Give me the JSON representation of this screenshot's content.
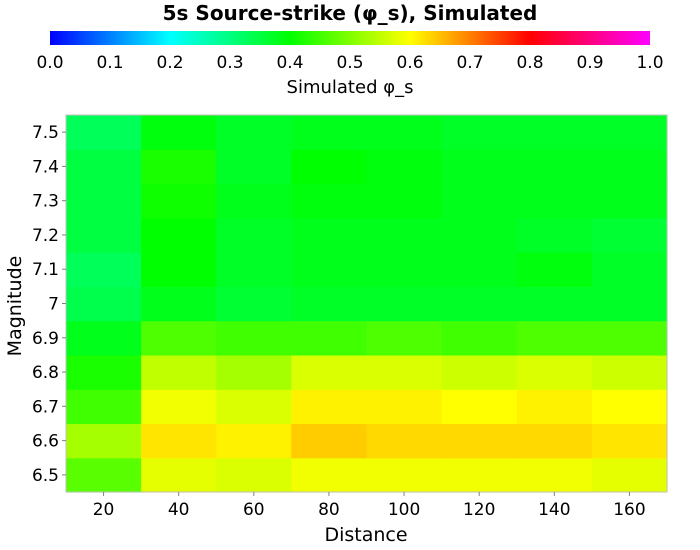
{
  "chart_data": {
    "type": "heatmap",
    "title": "5s Source-strike (φ_s), Simulated",
    "xlabel": "Distance",
    "ylabel": "Magnitude",
    "colorbar": {
      "label": "Simulated φ_s",
      "range": [
        0,
        1
      ],
      "ticks": [
        "0.0",
        "0.1",
        "0.2",
        "0.3",
        "0.4",
        "0.5",
        "0.6",
        "0.7",
        "0.8",
        "0.9",
        "1.0"
      ],
      "colors": [
        "#0000ff",
        "#00ffff",
        "#00ff00",
        "#ffff00",
        "#ff0000",
        "#ff00ff"
      ]
    },
    "x": [
      20,
      40,
      60,
      80,
      100,
      120,
      140,
      160
    ],
    "x_ticks": [
      "20",
      "40",
      "60",
      "80",
      "100",
      "120",
      "140",
      "160"
    ],
    "xlim": [
      10,
      170
    ],
    "y": [
      6.5,
      6.6,
      6.7,
      6.8,
      6.9,
      7.0,
      7.1,
      7.2,
      7.3,
      7.4,
      7.5
    ],
    "y_ticks": [
      "6.5",
      "6.6",
      "6.7",
      "6.8",
      "6.9",
      "7",
      "7.1",
      "7.2",
      "7.3",
      "7.4",
      "7.5"
    ],
    "ylim": [
      6.45,
      7.55
    ],
    "values": [
      [
        0.47,
        0.58,
        0.57,
        0.59,
        0.59,
        0.59,
        0.59,
        0.58
      ],
      [
        0.53,
        0.62,
        0.61,
        0.64,
        0.63,
        0.63,
        0.63,
        0.62
      ],
      [
        0.45,
        0.59,
        0.57,
        0.61,
        0.61,
        0.6,
        0.61,
        0.6
      ],
      [
        0.42,
        0.55,
        0.53,
        0.57,
        0.57,
        0.56,
        0.57,
        0.56
      ],
      [
        0.38,
        0.46,
        0.45,
        0.45,
        0.46,
        0.45,
        0.46,
        0.46
      ],
      [
        0.34,
        0.38,
        0.36,
        0.37,
        0.37,
        0.37,
        0.37,
        0.37
      ],
      [
        0.33,
        0.4,
        0.37,
        0.38,
        0.38,
        0.38,
        0.39,
        0.37
      ],
      [
        0.35,
        0.4,
        0.37,
        0.38,
        0.38,
        0.38,
        0.37,
        0.36
      ],
      [
        0.35,
        0.41,
        0.38,
        0.39,
        0.39,
        0.38,
        0.38,
        0.38
      ],
      [
        0.35,
        0.42,
        0.37,
        0.4,
        0.39,
        0.38,
        0.38,
        0.38
      ],
      [
        0.33,
        0.39,
        0.37,
        0.38,
        0.38,
        0.37,
        0.37,
        0.37
      ]
    ]
  }
}
